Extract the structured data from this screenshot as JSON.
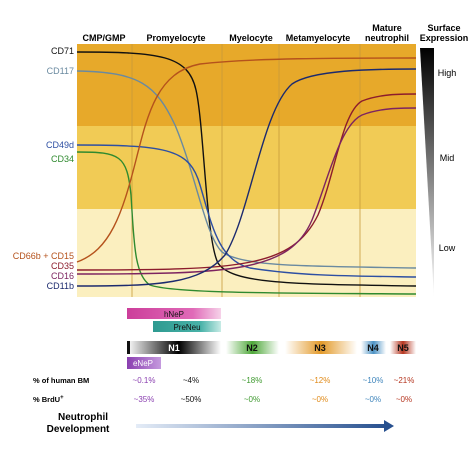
{
  "stages": [
    "CMP/GMP",
    "Promyelocyte",
    "Myelocyte",
    "Metamyelocyte",
    "Mature",
    "neutrophil"
  ],
  "surface_title": [
    "Surface",
    "Expression"
  ],
  "levels": {
    "high": "High",
    "mid": "Mid",
    "low": "Low"
  },
  "markers": [
    {
      "name": "CD71",
      "color": "#111111"
    },
    {
      "name": "CD117",
      "color": "#6a8aa0"
    },
    {
      "name": "CD49d",
      "color": "#2d4fa3"
    },
    {
      "name": "CD34",
      "color": "#2f8a2f"
    },
    {
      "name": "CD66b + CD15",
      "color": "#b5521c"
    },
    {
      "name": "CD35",
      "color": "#8c1c2c"
    },
    {
      "name": "CD16",
      "color": "#7d2460"
    },
    {
      "name": "CD11b",
      "color": "#1c2a6e"
    }
  ],
  "subsets": {
    "hnep": "hNeP",
    "preneu": "PreNeu",
    "n1": "N1",
    "n2": "N2",
    "n3": "N3",
    "n4": "N4",
    "n5": "N5",
    "enep": "eNeP"
  },
  "rows": {
    "bm_label": "% of human BM",
    "brdu_label": "% BrdU",
    "brdu_sup": "+",
    "bm": [
      "~0.1%",
      "~4%",
      "~18%",
      "~12%",
      "~10%",
      "~21%"
    ],
    "brdu": [
      "~35%",
      "~50%",
      "~0%",
      "~0%",
      "~0%",
      "~0%"
    ]
  },
  "development": [
    "Neutrophil",
    "Development"
  ],
  "colors": {
    "band_high": "#e7a92a",
    "band_mid": "#f1cb55",
    "band_low": "#fbefbf",
    "hnep": "#cc3e9a",
    "preneu": "#2e9a90",
    "enep": "#8a3fb0",
    "n2": "#4fa83a",
    "n3": "#e39a2a",
    "n4": "#4c92c4",
    "n5": "#b5351f"
  }
}
